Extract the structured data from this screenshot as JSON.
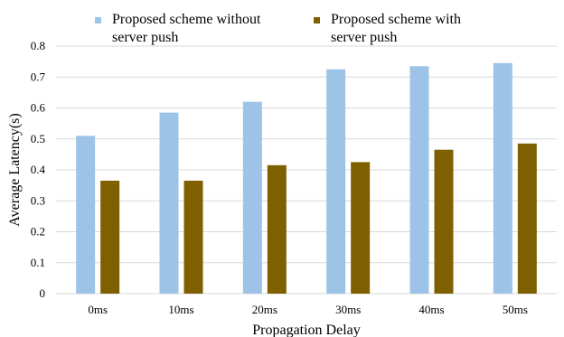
{
  "chart_data": {
    "type": "bar",
    "categories": [
      "0ms",
      "10ms",
      "20ms",
      "30ms",
      "40ms",
      "50ms"
    ],
    "series": [
      {
        "name": "Proposed scheme  without\nserver push",
        "values": [
          0.51,
          0.585,
          0.62,
          0.725,
          0.735,
          0.745
        ],
        "color": "#9dc3e6"
      },
      {
        "name": "Proposed scheme  with\nserver push",
        "values": [
          0.365,
          0.365,
          0.415,
          0.425,
          0.465,
          0.485
        ],
        "color": "#7f6000"
      }
    ],
    "xlabel": "Propagation Delay",
    "ylabel": "Average Latency(s)",
    "ylim": [
      0,
      0.8
    ],
    "yticks": [
      "0",
      "0.1",
      "0.2",
      "0.3",
      "0.4",
      "0.5",
      "0.6",
      "0.7",
      "0.8"
    ],
    "grid": true,
    "gridColor": "#d9d9d9",
    "legendPosition": "top"
  }
}
